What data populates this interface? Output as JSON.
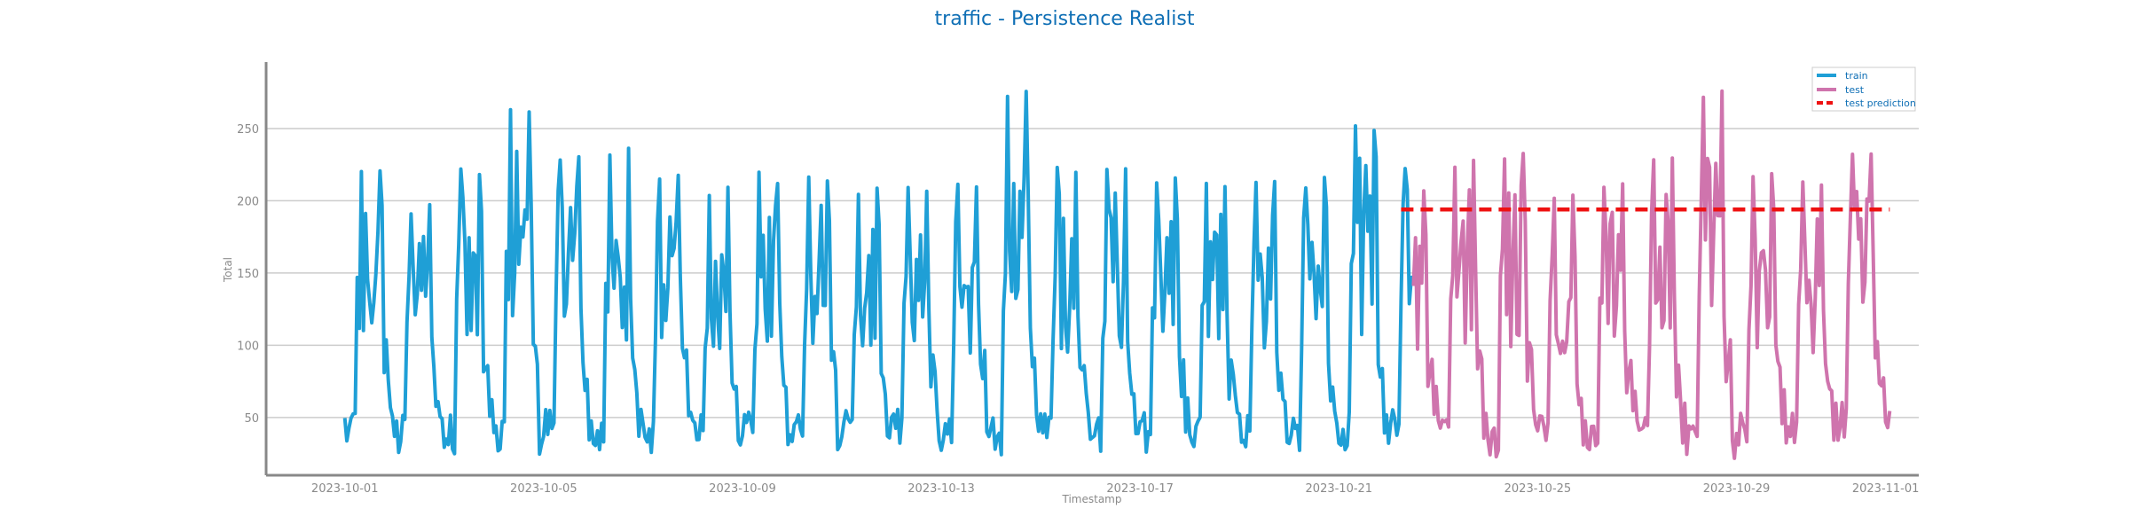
{
  "chart_data": {
    "type": "line",
    "title": "traffic - Persistence Realist",
    "xlabel": "Timestamp",
    "ylabel": "Total",
    "x_range": [
      "2023-09-29T10:00",
      "2023-11-01T16:00"
    ],
    "ylim": [
      10,
      296
    ],
    "x_ticks": [
      "2023-10-01",
      "2023-10-05",
      "2023-10-09",
      "2023-10-13",
      "2023-10-17",
      "2023-10-21",
      "2023-10-25",
      "2023-10-29",
      "2023-11-01"
    ],
    "y_ticks": [
      50,
      100,
      150,
      200,
      250
    ],
    "grid": "horizontal",
    "legend_position": "top-right",
    "colors": {
      "train": "#1f9fd6",
      "test": "#cf74ad",
      "test prediction": "#ee1111",
      "title": "#0f6fb5"
    },
    "series": [
      {
        "name": "train",
        "style": "solid",
        "daily_peaks": [
          [
            "2023-10-01",
            229
          ],
          [
            "2023-10-02",
            200
          ],
          [
            "2023-10-03",
            228
          ],
          [
            "2023-10-04",
            265
          ],
          [
            "2023-10-05",
            236
          ],
          [
            "2023-10-06",
            237
          ],
          [
            "2023-10-07",
            223
          ],
          [
            "2023-10-08",
            213
          ],
          [
            "2023-10-09",
            220
          ],
          [
            "2023-10-10",
            220
          ],
          [
            "2023-10-11",
            212
          ],
          [
            "2023-10-12",
            216
          ],
          [
            "2023-10-13",
            213
          ],
          [
            "2023-10-14",
            278
          ],
          [
            "2023-10-15",
            225
          ],
          [
            "2023-10-16",
            227
          ],
          [
            "2023-10-17",
            218
          ],
          [
            "2023-10-18",
            219
          ],
          [
            "2023-10-19",
            219
          ],
          [
            "2023-10-20",
            218
          ],
          [
            "2023-10-21",
            256
          ],
          [
            "2023-10-22",
            228
          ]
        ],
        "daily_troughs": [
          [
            "2023-10-01",
            27
          ],
          [
            "2023-10-02",
            25
          ],
          [
            "2023-10-03",
            24
          ],
          [
            "2023-10-04",
            22
          ],
          [
            "2023-10-05",
            28
          ],
          [
            "2023-10-06",
            26
          ],
          [
            "2023-10-07",
            25
          ],
          [
            "2023-10-08",
            26
          ],
          [
            "2023-10-09",
            27
          ],
          [
            "2023-10-10",
            26
          ],
          [
            "2023-10-11",
            27
          ],
          [
            "2023-10-12",
            28
          ],
          [
            "2023-10-13",
            26
          ],
          [
            "2023-10-14",
            24
          ],
          [
            "2023-10-15",
            25
          ],
          [
            "2023-10-16",
            24
          ],
          [
            "2023-10-17",
            26
          ],
          [
            "2023-10-18",
            27
          ],
          [
            "2023-10-19",
            25
          ],
          [
            "2023-10-20",
            27
          ],
          [
            "2023-10-21",
            26
          ],
          [
            "2023-10-22",
            28
          ]
        ]
      },
      {
        "name": "test",
        "style": "solid",
        "daily_peaks": [
          [
            "2023-10-23",
            231
          ],
          [
            "2023-10-24",
            236
          ],
          [
            "2023-10-25",
            205
          ],
          [
            "2023-10-26",
            215
          ],
          [
            "2023-10-27",
            235
          ],
          [
            "2023-10-28",
            280
          ],
          [
            "2023-10-29",
            221
          ],
          [
            "2023-10-30",
            219
          ],
          [
            "2023-10-31",
            239
          ]
        ],
        "daily_troughs": [
          [
            "2023-10-23",
            27
          ],
          [
            "2023-10-24",
            22
          ],
          [
            "2023-10-25",
            24
          ],
          [
            "2023-10-26",
            26
          ],
          [
            "2023-10-27",
            23
          ],
          [
            "2023-10-28",
            21
          ],
          [
            "2023-10-29",
            27
          ],
          [
            "2023-10-30",
            26
          ],
          [
            "2023-10-31",
            33
          ]
        ]
      },
      {
        "name": "test prediction",
        "style": "dashed",
        "points": [
          [
            "2023-10-22T06:00",
            194
          ],
          [
            "2023-11-01T02:00",
            194
          ]
        ]
      }
    ]
  }
}
